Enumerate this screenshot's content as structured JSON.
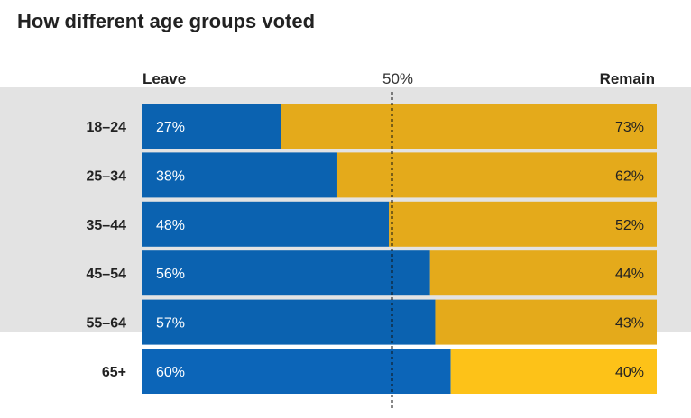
{
  "title": "How different age groups voted",
  "colors": {
    "leave": "#0b62b0",
    "remain": "#e4aa1b",
    "leave_last": "#0c65b8",
    "remain_last": "#fdc218",
    "band": "#e3e3e3"
  },
  "chart_data": {
    "type": "bar",
    "orientation": "horizontal-stacked-100",
    "title": "How different age groups voted",
    "left_label": "Leave",
    "right_label": "Remain",
    "reference_label": "50%",
    "reference_value": 50,
    "xlim": [
      0,
      100
    ],
    "categories": [
      "18–24",
      "25–34",
      "35–44",
      "45–54",
      "55–64",
      "65+"
    ],
    "series": [
      {
        "name": "Leave",
        "values": [
          27,
          38,
          48,
          56,
          57,
          60
        ],
        "labels": [
          "27%",
          "38%",
          "48%",
          "56%",
          "57%",
          "60%"
        ]
      },
      {
        "name": "Remain",
        "values": [
          73,
          62,
          52,
          44,
          43,
          40
        ],
        "labels": [
          "73%",
          "62%",
          "52%",
          "44%",
          "43%",
          "40%"
        ]
      }
    ]
  }
}
